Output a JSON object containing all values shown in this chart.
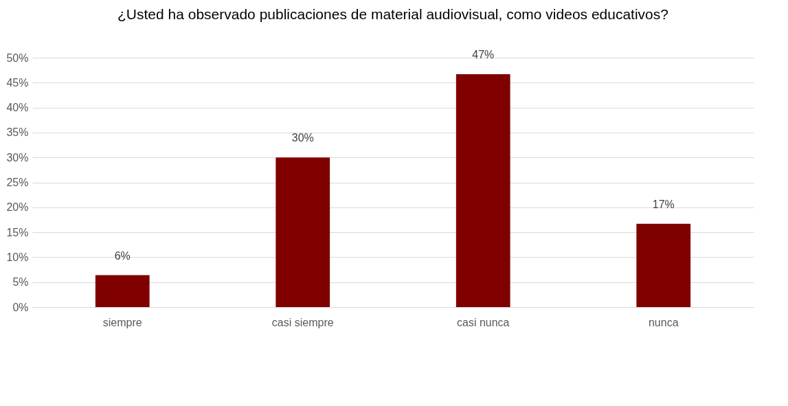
{
  "chart_data": {
    "type": "bar",
    "title": "¿Usted ha observado publicaciones de material audiovisual, como videos educativos?",
    "categories": [
      "siempre",
      "casi siempre",
      "casi nunca",
      "nunca"
    ],
    "values": [
      6.4,
      30,
      46.7,
      16.7
    ],
    "value_labels": [
      "6%",
      "30%",
      "47%",
      "17%"
    ],
    "color": "#800000",
    "ylim": [
      0,
      50
    ],
    "yticks": [
      {
        "value": 0,
        "label": "0%"
      },
      {
        "value": 5,
        "label": "5%"
      },
      {
        "value": 10,
        "label": "10%"
      },
      {
        "value": 15,
        "label": "15%"
      },
      {
        "value": 20,
        "label": "20%"
      },
      {
        "value": 25,
        "label": "25%"
      },
      {
        "value": 30,
        "label": "30%"
      },
      {
        "value": 35,
        "label": "35%"
      },
      {
        "value": 40,
        "label": "40%"
      },
      {
        "value": 45,
        "label": "45%"
      },
      {
        "value": 50,
        "label": "50%"
      }
    ],
    "grid": "y"
  }
}
